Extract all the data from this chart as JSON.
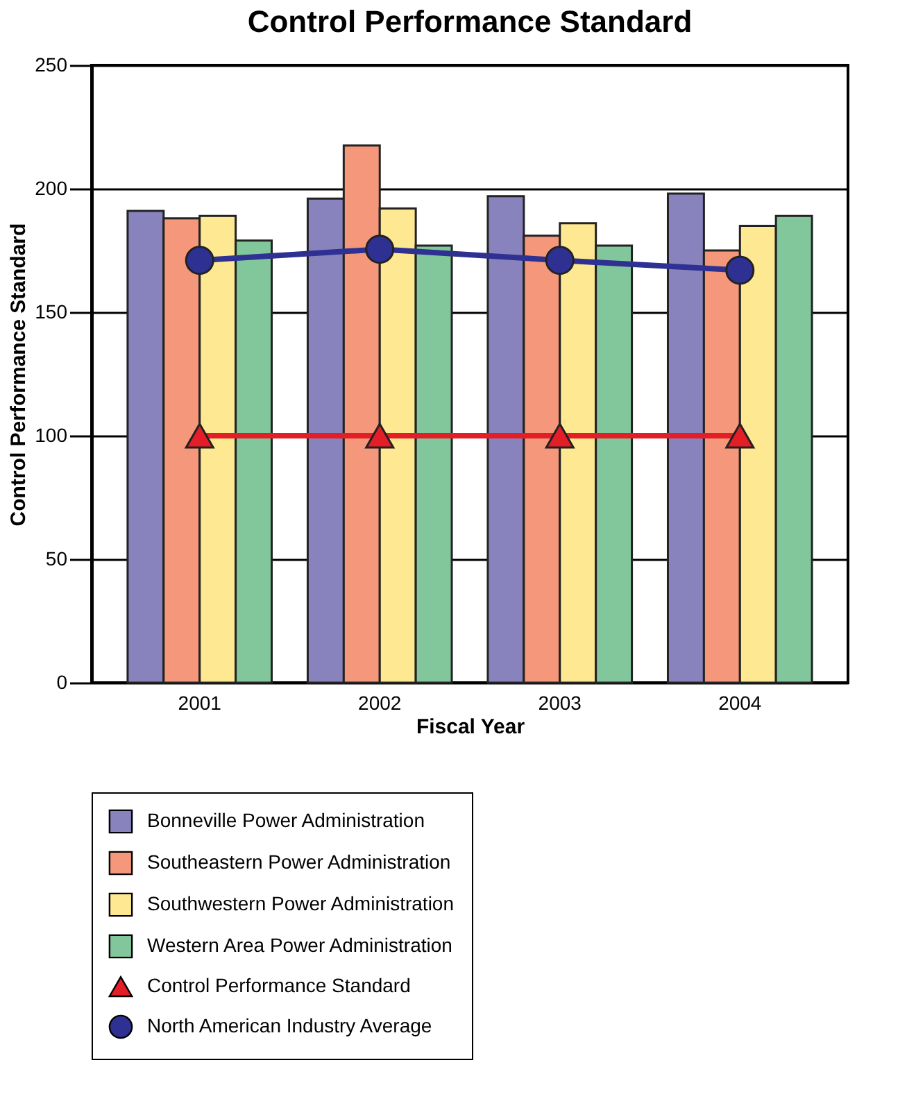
{
  "chart_data": {
    "type": "bar",
    "title": "Control Performance Standard",
    "xlabel": "Fiscal Year",
    "ylabel": "Control Performance Standard",
    "categories": [
      "2001",
      "2002",
      "2003",
      "2004"
    ],
    "series": [
      {
        "name": "Bonneville Power Administration",
        "color": "#8882bd",
        "values": [
          191,
          196,
          197,
          198
        ]
      },
      {
        "name": "Southeastern Power Administration",
        "color": "#f4977a",
        "values": [
          188,
          217.5,
          181,
          175
        ]
      },
      {
        "name": "Southwestern Power Administration",
        "color": "#fee891",
        "values": [
          189,
          192,
          186,
          185
        ]
      },
      {
        "name": "Western Area Power Administration",
        "color": "#82c79b",
        "values": [
          179,
          177,
          177,
          189
        ]
      },
      {
        "name": "Control Performance Standard",
        "color": "#e31e26",
        "type": "line",
        "marker": "triangle",
        "values": [
          100,
          100,
          100,
          100
        ]
      },
      {
        "name": "North American Industry Average",
        "color": "#2e3192",
        "type": "line",
        "marker": "circle",
        "values": [
          171,
          175.5,
          171,
          167
        ]
      }
    ],
    "ylim": [
      0,
      250
    ],
    "yticks": [
      0,
      50,
      100,
      150,
      200,
      250
    ],
    "grid": "y",
    "legend": "bottom"
  }
}
